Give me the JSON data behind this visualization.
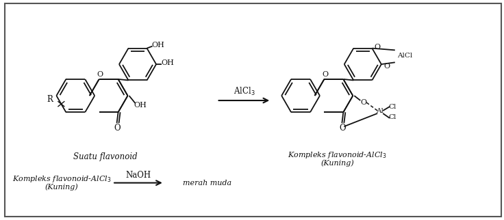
{
  "bg_color": "#ffffff",
  "border_color": "#555555",
  "line_color": "#111111",
  "text_color": "#111111",
  "fig_width": 7.36,
  "fig_height": 3.22,
  "dpi": 100,
  "label_left": "Suatu flavonoid",
  "label_right1": "Kompleks flavonoid-AlCl",
  "label_right2": "(Kuning)",
  "label_alcl3": "AlCl",
  "label_naoh": "NaOH",
  "label_bottom1": "Kompleks flavonoid-AlCl",
  "label_bottom2": "(Kuning)",
  "label_product": "merah muda"
}
